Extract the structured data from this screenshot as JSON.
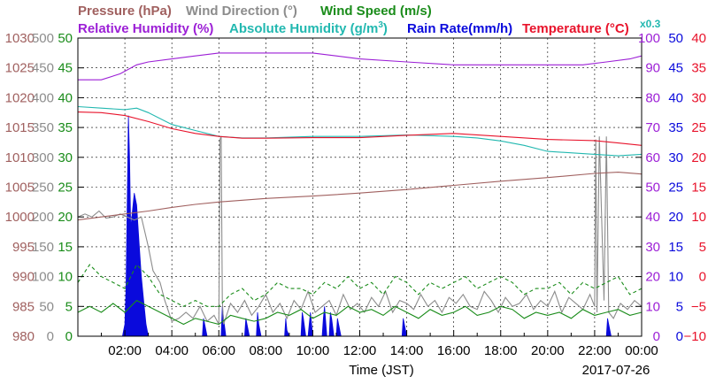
{
  "chart_data": {
    "type": "line",
    "legend": [
      {
        "label": "Pressure (hPa)",
        "color": "#a0605f"
      },
      {
        "label": "Wind Direction (°)",
        "color": "#8c8c8c"
      },
      {
        "label": "Wind Speed (m/s)",
        "color": "#1a8c1a"
      },
      {
        "label": "Relative Humidity (%)",
        "color": "#9c1fd6"
      },
      {
        "label": "Absolute Humidity (g/m",
        "sup": "3",
        "tail": ")",
        "color": "#22b8b0"
      },
      {
        "label": "Rain Rate(mm/h)",
        "color": "#0a0adc"
      },
      {
        "label": "Temperature (°C)",
        "color": "#e8132b"
      }
    ],
    "abs_humidity_factor": "x0.3",
    "xlabel": "Time (JST)",
    "date": "2017-07-26",
    "x_ticks": [
      "02:00",
      "04:00",
      "06:00",
      "08:00",
      "10:00",
      "12:00",
      "14:00",
      "16:00",
      "18:00",
      "20:00",
      "22:00",
      "00:00"
    ],
    "x_range_hours": [
      0,
      24
    ],
    "grid": true,
    "axes": {
      "pressure": {
        "color": "#a0605f",
        "range": [
          980,
          1030
        ],
        "ticks": [
          "1030",
          "1025",
          "1020",
          "1015",
          "1010",
          "1005",
          "1000",
          "995",
          "990",
          "985",
          "980"
        ]
      },
      "wind_direction": {
        "color": "#8c8c8c",
        "range": [
          0,
          500
        ],
        "ticks": [
          "500",
          "450",
          "400",
          "350",
          "300",
          "250",
          "200",
          "150",
          "100",
          "50",
          "0"
        ]
      },
      "wind_speed": {
        "color": "#1a8c1a",
        "range": [
          0,
          50
        ],
        "ticks": [
          "50",
          "45",
          "40",
          "35",
          "30",
          "25",
          "20",
          "15",
          "10",
          "5",
          "0"
        ]
      },
      "relative_humidity": {
        "color": "#9c1fd6",
        "range": [
          0,
          100
        ],
        "ticks": [
          "100",
          "90",
          "80",
          "70",
          "60",
          "50",
          "40",
          "30",
          "20",
          "10",
          "0"
        ]
      },
      "rain_rate": {
        "color": "#0a0adc",
        "range": [
          0,
          50
        ],
        "ticks": [
          "50",
          "45",
          "40",
          "35",
          "30",
          "25",
          "20",
          "15",
          "10",
          "5",
          "0"
        ]
      },
      "temperature": {
        "color": "#e8132b",
        "range": [
          -10,
          40
        ],
        "ticks": [
          "40",
          "35",
          "30",
          "25",
          "20",
          "15",
          "10",
          "5",
          "0",
          "−5",
          "−10"
        ]
      }
    },
    "series": [
      {
        "name": "Pressure",
        "axis": "pressure",
        "color": "#a0605f",
        "x": [
          0,
          1,
          2,
          3,
          4,
          5,
          6,
          7,
          8,
          10,
          12,
          14,
          16,
          18,
          20,
          22,
          23,
          24
        ],
        "y": [
          999.5,
          1000,
          1000.5,
          1001,
          1001.6,
          1002.1,
          1002.5,
          1002.8,
          1003.1,
          1003.5,
          1004,
          1004.6,
          1005.3,
          1006,
          1006.6,
          1007.3,
          1007.5,
          1007.2
        ]
      },
      {
        "name": "Relative Humidity",
        "axis": "relative_humidity",
        "color": "#9c1fd6",
        "x": [
          0,
          1,
          1.8,
          2.5,
          3,
          4,
          5,
          6,
          7,
          8,
          9,
          10,
          11,
          12,
          14,
          16,
          18,
          20,
          21.5,
          22.5,
          23.5,
          24
        ],
        "y": [
          86,
          86,
          88,
          91,
          92,
          93,
          94,
          95,
          95,
          95,
          95,
          95,
          94,
          93,
          92,
          91,
          91,
          91,
          91,
          92,
          93,
          94
        ]
      },
      {
        "name": "Absolute Humidity",
        "axis": "relative_humidity",
        "color": "#22b8b0",
        "x": [
          0,
          1,
          2,
          2.5,
          3,
          4,
          5,
          6,
          7,
          8,
          10,
          12,
          14,
          16,
          17,
          18,
          19,
          20,
          22,
          23,
          24
        ],
        "y": [
          77,
          76.5,
          76,
          76.5,
          75,
          71,
          69,
          67,
          66.5,
          66.5,
          67,
          67,
          67.5,
          67,
          66.5,
          65.5,
          64,
          62,
          61,
          60.5,
          61
        ]
      },
      {
        "name": "Temperature",
        "axis": "temperature",
        "color": "#e8132b",
        "x": [
          0,
          1,
          2,
          3,
          4,
          5,
          6,
          7,
          8,
          10,
          12,
          14,
          16,
          18,
          20,
          22,
          23,
          24
        ],
        "y": [
          27.6,
          27.5,
          27,
          26,
          24.8,
          24,
          23.5,
          23.2,
          23.2,
          23.3,
          23.3,
          23.7,
          24,
          23.5,
          23,
          22.8,
          22.4,
          22
        ]
      },
      {
        "name": "Wind Direction",
        "axis": "wind_direction",
        "color": "#8c8c8c",
        "x": [
          0,
          0.3,
          0.6,
          0.9,
          1.2,
          1.5,
          1.8,
          2.1,
          2.4,
          2.7,
          3.0,
          3.2,
          3.5,
          3.7,
          4.0,
          4.3,
          4.6,
          4.9,
          5.2,
          5.5,
          5.8,
          6.0,
          6.05,
          6.1,
          6.15,
          6.2,
          6.5,
          6.8,
          7.1,
          7.4,
          7.7,
          8.0,
          8.3,
          8.6,
          8.9,
          9.2,
          9.5,
          9.8,
          10.1,
          10.4,
          10.7,
          11.0,
          11.3,
          11.6,
          11.9,
          12.2,
          12.5,
          12.8,
          13.1,
          13.4,
          13.7,
          14.0,
          14.3,
          14.6,
          14.9,
          15.2,
          15.5,
          15.8,
          16.1,
          16.4,
          16.7,
          17.0,
          17.3,
          17.6,
          17.9,
          18.2,
          18.5,
          18.8,
          19.1,
          19.4,
          19.7,
          20.0,
          20.3,
          20.6,
          20.9,
          21.2,
          21.5,
          21.8,
          22.0,
          22.05,
          22.1,
          22.2,
          22.4,
          22.5,
          22.6,
          22.8,
          23.1,
          23.4,
          23.7,
          24
        ],
        "y": [
          200,
          205,
          200,
          210,
          198,
          200,
          205,
          200,
          195,
          200,
          150,
          110,
          90,
          60,
          25,
          30,
          40,
          30,
          50,
          25,
          35,
          20,
          330,
          335,
          60,
          20,
          55,
          40,
          60,
          35,
          50,
          70,
          40,
          55,
          30,
          60,
          45,
          75,
          40,
          50,
          60,
          35,
          70,
          45,
          55,
          40,
          65,
          50,
          75,
          40,
          60,
          55,
          45,
          70,
          50,
          60,
          40,
          65,
          55,
          70,
          50,
          45,
          75,
          60,
          40,
          65,
          50,
          55,
          70,
          45,
          60,
          50,
          75,
          40,
          65,
          55,
          45,
          70,
          50,
          330,
          40,
          335,
          60,
          335,
          40,
          30,
          55,
          45,
          60,
          50
        ]
      },
      {
        "name": "Wind Speed",
        "axis": "wind_speed",
        "color": "#1a8c1a",
        "x": [
          0,
          0.5,
          1,
          1.5,
          2,
          2.5,
          3,
          3.5,
          4,
          4.5,
          5,
          5.5,
          6,
          6.5,
          7,
          7.5,
          8,
          8.5,
          9,
          9.5,
          10,
          10.5,
          11,
          11.5,
          12,
          12.5,
          13,
          13.5,
          14,
          14.5,
          15,
          15.5,
          16,
          16.5,
          17,
          17.5,
          18,
          18.5,
          19,
          19.5,
          20,
          20.5,
          21,
          21.5,
          22,
          22.5,
          23,
          23.5,
          24
        ],
        "y": [
          4,
          5,
          4,
          5.5,
          4,
          6,
          5,
          4,
          3,
          2,
          3,
          2.5,
          2,
          3.5,
          3,
          2.5,
          3,
          4,
          3.5,
          4.5,
          3,
          4,
          3.5,
          5,
          4,
          4.5,
          3.5,
          5,
          4,
          3,
          4.5,
          3.5,
          4,
          5,
          3.5,
          4,
          5,
          4.5,
          3,
          4,
          3.5,
          4,
          3,
          4.5,
          3.5,
          4,
          4.5,
          3.5,
          4
        ]
      },
      {
        "name": "Wind Gust",
        "axis": "wind_speed",
        "color": "#1a8c1a",
        "dashed": true,
        "x": [
          0,
          0.5,
          1,
          1.5,
          2,
          2.5,
          3,
          3.5,
          4,
          4.5,
          5,
          5.5,
          6,
          6.5,
          7,
          7.5,
          8,
          8.5,
          9,
          9.5,
          10,
          10.5,
          11,
          11.5,
          12,
          12.5,
          13,
          13.5,
          14,
          14.5,
          15,
          15.5,
          16,
          16.5,
          17,
          17.5,
          18,
          18.5,
          19,
          19.5,
          20,
          20.5,
          21,
          21.5,
          22,
          22.5,
          23,
          23.5,
          24
        ],
        "y": [
          9,
          12,
          10,
          9,
          8,
          12,
          10,
          7,
          6,
          5,
          6,
          5,
          5,
          7,
          8,
          6,
          7,
          9,
          8,
          8,
          7,
          9,
          8,
          10,
          8,
          9,
          7,
          10,
          9,
          7,
          9,
          8,
          9,
          10,
          8,
          9,
          10,
          9,
          7,
          8,
          8,
          9,
          7,
          9,
          8,
          9,
          10,
          7,
          8
        ]
      },
      {
        "name": "Rain Rate",
        "axis": "rain_rate",
        "color": "#0a0adc",
        "fill": true,
        "x": [
          0,
          1.9,
          2.0,
          2.05,
          2.1,
          2.15,
          2.2,
          2.25,
          2.3,
          2.4,
          2.5,
          2.6,
          2.7,
          2.8,
          2.9,
          3.0,
          3.1,
          3.2,
          3.3,
          5.2,
          5.3,
          5.35,
          5.4,
          5.5,
          5.6,
          6.0,
          6.1,
          6.15,
          6.2,
          6.3,
          7.0,
          7.1,
          7.15,
          7.2,
          7.3,
          7.5,
          7.6,
          7.65,
          7.7,
          7.8,
          8.7,
          8.8,
          8.85,
          8.9,
          9.0,
          9.4,
          9.5,
          9.55,
          9.6,
          9.7,
          9.8,
          9.85,
          9.9,
          10.0,
          10.3,
          10.4,
          10.45,
          10.5,
          10.6,
          10.7,
          10.75,
          10.8,
          10.9,
          11.0,
          11.05,
          11.1,
          11.2,
          13.7,
          13.8,
          13.85,
          13.9,
          14.0,
          22.4,
          22.5,
          22.55,
          22.6,
          22.7,
          24
        ],
        "y": [
          0,
          0,
          2,
          8,
          22,
          37,
          30,
          18,
          20,
          24,
          22,
          16,
          10,
          6,
          2,
          0,
          0,
          0,
          0,
          0,
          0,
          3,
          2,
          0,
          0,
          0,
          0,
          5,
          3,
          0,
          0,
          0,
          3,
          2,
          0,
          0,
          0,
          4,
          2,
          0,
          0,
          0,
          3,
          1,
          0,
          0,
          0,
          4,
          3,
          0,
          0,
          2,
          4,
          0,
          0,
          0,
          3,
          5,
          0,
          0,
          4,
          3,
          0,
          0,
          3,
          2,
          0,
          0,
          0,
          3,
          2,
          0,
          0,
          0,
          3,
          2,
          0,
          0
        ]
      }
    ]
  }
}
